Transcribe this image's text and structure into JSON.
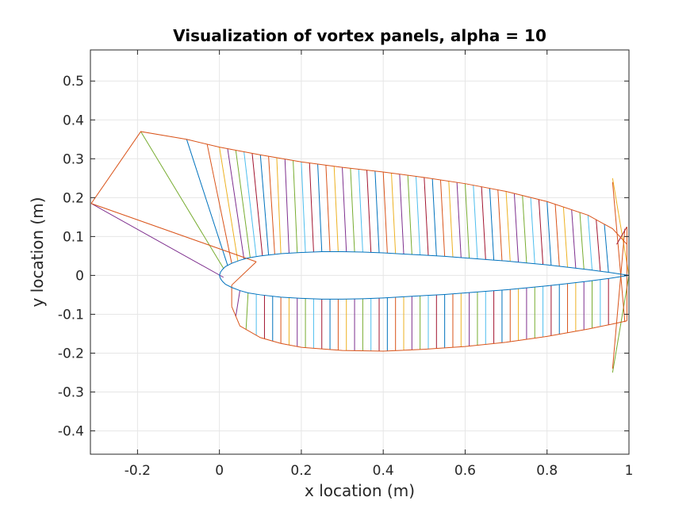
{
  "chart_data": {
    "type": "line",
    "title": "Visualization of vortex panels, alpha = 10",
    "xlabel": "x location (m)",
    "ylabel": "y location (m)",
    "xlim": [
      -0.315,
      1.0
    ],
    "ylim": [
      -0.46,
      0.58
    ],
    "xticks": [
      -0.2,
      0,
      0.2,
      0.4,
      0.6,
      0.8,
      1
    ],
    "xtick_labels": [
      "-0.2",
      "0",
      "0.2",
      "0.4",
      "0.6",
      "0.8",
      "1"
    ],
    "yticks": [
      -0.4,
      -0.3,
      -0.2,
      -0.1,
      0,
      0.1,
      0.2,
      0.3,
      0.4,
      0.5
    ],
    "ytick_labels": [
      "-0.4",
      "-0.3",
      "-0.2",
      "-0.1",
      "0",
      "0.1",
      "0.2",
      "0.3",
      "0.4",
      "0.5"
    ],
    "grid": true,
    "colors": [
      "#0072BD",
      "#D95319",
      "#EDB120",
      "#7E2F8E",
      "#77AC30",
      "#4DBEEE",
      "#A2142F"
    ],
    "airfoil": {
      "color": "#0072BD",
      "upper_x": [
        1.0,
        0.95,
        0.9,
        0.85,
        0.8,
        0.75,
        0.7,
        0.65,
        0.6,
        0.55,
        0.5,
        0.45,
        0.4,
        0.35,
        0.3,
        0.25,
        0.2,
        0.15,
        0.1,
        0.07,
        0.05,
        0.03,
        0.015,
        0.008,
        0.003,
        0.0
      ],
      "upper_y": [
        0.0,
        0.008,
        0.015,
        0.021,
        0.027,
        0.032,
        0.037,
        0.041,
        0.045,
        0.049,
        0.052,
        0.055,
        0.058,
        0.06,
        0.061,
        0.061,
        0.059,
        0.056,
        0.05,
        0.045,
        0.039,
        0.031,
        0.023,
        0.016,
        0.009,
        0.0
      ],
      "lower_x": [
        0.0,
        0.003,
        0.008,
        0.015,
        0.03,
        0.05,
        0.07,
        0.1,
        0.15,
        0.2,
        0.25,
        0.3,
        0.35,
        0.4,
        0.45,
        0.5,
        0.55,
        0.6,
        0.65,
        0.7,
        0.75,
        0.8,
        0.85,
        0.9,
        0.95,
        1.0
      ],
      "lower_y": [
        0.0,
        -0.009,
        -0.016,
        -0.023,
        -0.031,
        -0.039,
        -0.045,
        -0.05,
        -0.056,
        -0.059,
        -0.061,
        -0.061,
        -0.06,
        -0.058,
        -0.055,
        -0.052,
        -0.049,
        -0.045,
        -0.041,
        -0.037,
        -0.032,
        -0.027,
        -0.021,
        -0.015,
        -0.008,
        0.0
      ]
    },
    "outer_boundary": {
      "color": "#D95319",
      "upper_x": [
        -0.313,
        -0.192,
        -0.08,
        0.0,
        0.1,
        0.2,
        0.3,
        0.4,
        0.5,
        0.6,
        0.7,
        0.8,
        0.9,
        0.96,
        0.995
      ],
      "upper_y": [
        0.185,
        0.37,
        0.35,
        0.33,
        0.31,
        0.292,
        0.278,
        0.266,
        0.252,
        0.236,
        0.216,
        0.19,
        0.155,
        0.12,
        0.08
      ],
      "lower_x": [
        0.03,
        0.05,
        0.1,
        0.15,
        0.2,
        0.3,
        0.4,
        0.5,
        0.6,
        0.7,
        0.8,
        0.9,
        0.96,
        0.995
      ],
      "lower_y": [
        -0.08,
        -0.13,
        -0.16,
        -0.175,
        -0.185,
        -0.193,
        -0.195,
        -0.19,
        -0.183,
        -0.172,
        -0.157,
        -0.138,
        -0.125,
        -0.117
      ],
      "tip_segments": [
        {
          "x": [
            -0.313,
            0.09
          ],
          "y": [
            0.185,
            0.035
          ]
        },
        {
          "x": [
            0.09,
            0.03
          ],
          "y": [
            0.035,
            -0.025
          ]
        },
        {
          "x": [
            0.03,
            0.03
          ],
          "y": [
            -0.025,
            -0.08
          ]
        },
        {
          "x": [
            0.995,
            0.995
          ],
          "y": [
            0.125,
            -0.117
          ]
        }
      ]
    },
    "extra_segments": [
      {
        "x": [
          -0.313,
          0.01
        ],
        "y": [
          0.185,
          -0.005
        ],
        "color": "#7E2F8E"
      },
      {
        "x": [
          -0.192,
          0.01
        ],
        "y": [
          0.37,
          0.018
        ],
        "color": "#77AC30"
      },
      {
        "x": [
          0.96,
          1.0
        ],
        "y": [
          0.25,
          0.0
        ],
        "color": "#EDB120"
      },
      {
        "x": [
          0.96,
          1.0
        ],
        "y": [
          -0.25,
          0.0
        ],
        "color": "#77AC30"
      },
      {
        "x": [
          0.96,
          0.99
        ],
        "y": [
          0.24,
          -0.12
        ],
        "color": "#D95319"
      },
      {
        "x": [
          0.96,
          0.99
        ],
        "y": [
          -0.24,
          0.12
        ],
        "color": "#D95319"
      },
      {
        "x": [
          0.97,
          0.995
        ],
        "y": [
          0.08,
          0.125
        ],
        "color": "#A2142F"
      }
    ],
    "upper_panels": {
      "inner_x": [
        0.02,
        0.03,
        0.045,
        0.06,
        0.075,
        0.09,
        0.105,
        0.12,
        0.135,
        0.15,
        0.17,
        0.19,
        0.21,
        0.23,
        0.25,
        0.27,
        0.29,
        0.31,
        0.33,
        0.35,
        0.37,
        0.39,
        0.41,
        0.43,
        0.45,
        0.47,
        0.49,
        0.51,
        0.53,
        0.55,
        0.57,
        0.59,
        0.61,
        0.63,
        0.65,
        0.67,
        0.69,
        0.71,
        0.73,
        0.75,
        0.77,
        0.79,
        0.81,
        0.83,
        0.85,
        0.87,
        0.89,
        0.91,
        0.93,
        0.95
      ],
      "outer_x": [
        -0.08,
        -0.03,
        0.0,
        0.02,
        0.04,
        0.06,
        0.08,
        0.1,
        0.12,
        0.14,
        0.16,
        0.18,
        0.2,
        0.22,
        0.24,
        0.26,
        0.28,
        0.3,
        0.32,
        0.34,
        0.36,
        0.38,
        0.4,
        0.42,
        0.44,
        0.46,
        0.48,
        0.5,
        0.52,
        0.54,
        0.56,
        0.58,
        0.6,
        0.62,
        0.64,
        0.66,
        0.68,
        0.7,
        0.72,
        0.74,
        0.76,
        0.78,
        0.8,
        0.82,
        0.84,
        0.86,
        0.88,
        0.9,
        0.92,
        0.94
      ]
    },
    "lower_panels": {
      "inner_x": [
        0.05,
        0.07,
        0.09,
        0.11,
        0.13,
        0.15,
        0.17,
        0.19,
        0.21,
        0.23,
        0.25,
        0.27,
        0.29,
        0.31,
        0.33,
        0.35,
        0.37,
        0.39,
        0.41,
        0.43,
        0.45,
        0.47,
        0.49,
        0.51,
        0.53,
        0.55,
        0.57,
        0.59,
        0.61,
        0.63,
        0.65,
        0.67,
        0.69,
        0.71,
        0.73,
        0.75,
        0.77,
        0.79,
        0.81,
        0.83,
        0.85,
        0.87,
        0.89,
        0.91,
        0.93,
        0.95
      ],
      "outer_x": [
        0.04,
        0.065,
        0.09,
        0.11,
        0.13,
        0.15,
        0.17,
        0.19,
        0.21,
        0.23,
        0.25,
        0.27,
        0.29,
        0.31,
        0.33,
        0.35,
        0.37,
        0.39,
        0.41,
        0.43,
        0.45,
        0.47,
        0.49,
        0.51,
        0.53,
        0.55,
        0.57,
        0.59,
        0.61,
        0.63,
        0.65,
        0.67,
        0.69,
        0.71,
        0.73,
        0.75,
        0.77,
        0.79,
        0.81,
        0.83,
        0.85,
        0.87,
        0.89,
        0.91,
        0.93,
        0.95
      ]
    }
  }
}
